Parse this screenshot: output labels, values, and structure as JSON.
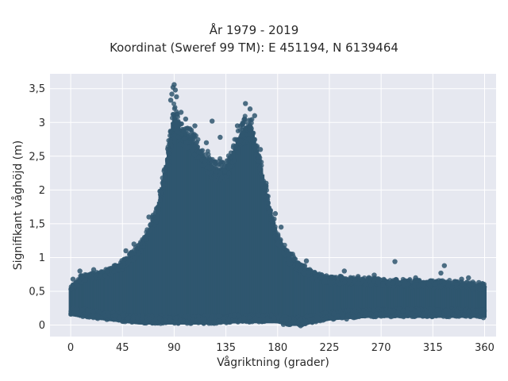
{
  "chart_data": {
    "type": "scatter",
    "title": [
      "År 1979 - 2019",
      "Koordinat (Sweref 99 TM): E 451194, N 6139464"
    ],
    "xlabel": "Vågriktning (grader)",
    "ylabel": "Signifikant våghöjd (m)",
    "xlim": [
      -18,
      370
    ],
    "ylim": [
      -0.17,
      3.72
    ],
    "x_ticks": [
      0,
      45,
      90,
      135,
      180,
      225,
      270,
      315,
      360
    ],
    "x_tick_labels": [
      "0",
      "45",
      "90",
      "135",
      "180",
      "225",
      "270",
      "315",
      "360"
    ],
    "y_ticks": [
      0,
      0.5,
      1,
      1.5,
      2,
      2.5,
      3,
      3.5
    ],
    "y_tick_labels": [
      "0",
      "0,5",
      "1",
      "1,5",
      "2",
      "2,5",
      "3",
      "3,5"
    ],
    "grid": true,
    "marker_color": "#2f566f",
    "plot_background": "#e6e8f0",
    "envelope": {
      "x": [
        0,
        10,
        30,
        45,
        60,
        75,
        85,
        90,
        95,
        105,
        115,
        125,
        135,
        145,
        152,
        158,
        165,
        172,
        180,
        190,
        200,
        215,
        225,
        240,
        260,
        280,
        300,
        320,
        340,
        360
      ],
      "upper": [
        0.55,
        0.75,
        0.8,
        0.95,
        1.2,
        1.75,
        2.7,
        3.3,
        3.05,
        2.9,
        2.65,
        2.45,
        2.45,
        2.85,
        3.1,
        3.05,
        2.5,
        1.9,
        1.35,
        1.05,
        0.9,
        0.75,
        0.7,
        0.7,
        0.68,
        0.66,
        0.65,
        0.65,
        0.63,
        0.6
      ],
      "lower": [
        0.15,
        0.12,
        0.08,
        0.05,
        0.02,
        0.02,
        0.02,
        0.02,
        0.02,
        0.02,
        0.02,
        0.02,
        0.03,
        0.04,
        0.04,
        0.04,
        0.04,
        0.04,
        0.04,
        0.0,
        0.0,
        0.05,
        0.08,
        0.1,
        0.12,
        0.12,
        0.12,
        0.12,
        0.12,
        0.12
      ]
    },
    "outliers": [
      {
        "x": 90,
        "y": 3.56
      },
      {
        "x": 89,
        "y": 3.52
      },
      {
        "x": 91,
        "y": 3.48
      },
      {
        "x": 88,
        "y": 3.42
      },
      {
        "x": 87,
        "y": 3.33
      },
      {
        "x": 92,
        "y": 3.38
      },
      {
        "x": 152,
        "y": 3.28
      },
      {
        "x": 156,
        "y": 3.2
      },
      {
        "x": 160,
        "y": 3.1
      },
      {
        "x": 123,
        "y": 3.02
      },
      {
        "x": 108,
        "y": 2.95
      },
      {
        "x": 130,
        "y": 2.78
      },
      {
        "x": 282,
        "y": 0.94
      },
      {
        "x": 325,
        "y": 0.88
      },
      {
        "x": 322,
        "y": 0.77
      },
      {
        "x": 346,
        "y": 0.7
      },
      {
        "x": 250,
        "y": 0.72
      },
      {
        "x": 2,
        "y": 0.68
      },
      {
        "x": 48,
        "y": 1.1
      },
      {
        "x": 68,
        "y": 1.6
      },
      {
        "x": 55,
        "y": 1.2
      },
      {
        "x": 76,
        "y": 1.75
      },
      {
        "x": 183,
        "y": 1.45
      },
      {
        "x": 178,
        "y": 1.65
      },
      {
        "x": 193,
        "y": 1.05
      },
      {
        "x": 205,
        "y": 0.95
      },
      {
        "x": 238,
        "y": 0.8
      },
      {
        "x": 264,
        "y": 0.74
      },
      {
        "x": 300,
        "y": 0.7
      },
      {
        "x": 340,
        "y": 0.68
      },
      {
        "x": 355,
        "y": 0.63
      },
      {
        "x": 8,
        "y": 0.8
      },
      {
        "x": 20,
        "y": 0.82
      },
      {
        "x": 35,
        "y": 0.84
      },
      {
        "x": 145,
        "y": 2.95
      },
      {
        "x": 118,
        "y": 2.7
      },
      {
        "x": 100,
        "y": 3.05
      },
      {
        "x": 96,
        "y": 3.15
      },
      {
        "x": 165,
        "y": 2.6
      },
      {
        "x": 170,
        "y": 2.1
      },
      {
        "x": 200,
        "y": -0.01
      },
      {
        "x": 185,
        "y": 0.01
      },
      {
        "x": 240,
        "y": 0.09
      },
      {
        "x": 359,
        "y": 0.11
      }
    ],
    "fill_points": 2600
  }
}
